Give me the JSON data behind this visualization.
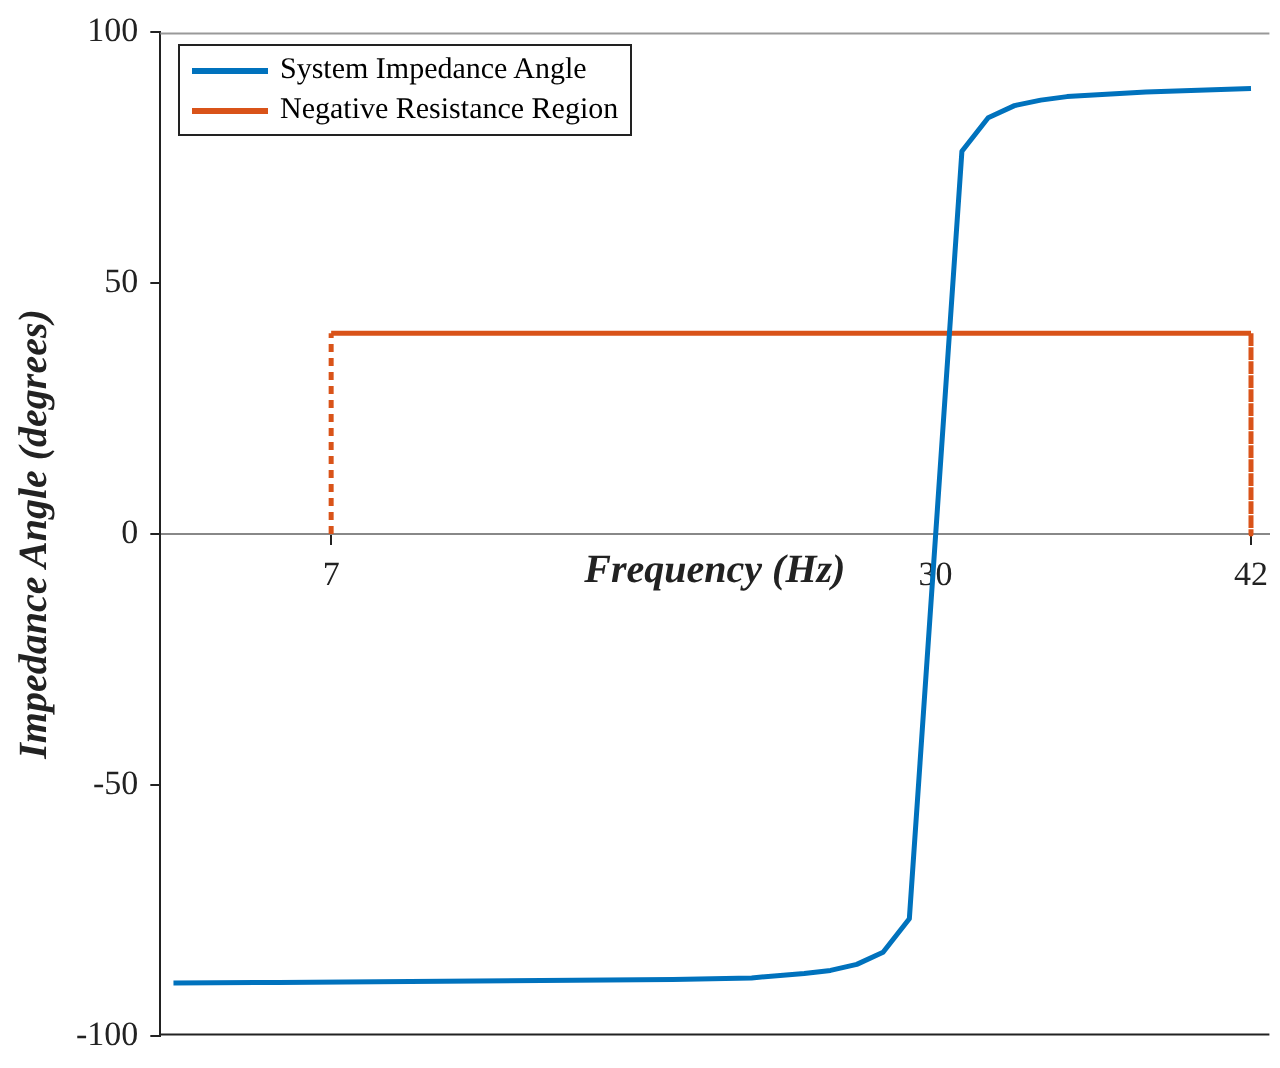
{
  "chart_data": {
    "type": "line",
    "xlabel": "Frequency (Hz)",
    "ylabel": "Impedance Angle (degrees)",
    "xlim": [
      0.5,
      42.7
    ],
    "xticks": [
      7,
      30,
      42
    ],
    "ylim": [
      -100,
      100
    ],
    "yticks": [
      -100,
      -50,
      0,
      50,
      100
    ],
    "grid": false,
    "legend": "top left",
    "marker": "none",
    "series": [
      {
        "name": "System Impedance Angle",
        "color": "#0072bd",
        "x": [
          1,
          5,
          10,
          15,
          20,
          23,
          25,
          26,
          27,
          28,
          29,
          31,
          32,
          33,
          34,
          35,
          38,
          42
        ],
        "values": [
          -89.5,
          -89.4,
          -89.2,
          -89,
          -88.8,
          -88.5,
          -87.6,
          -87,
          -85.8,
          -83.4,
          -76.7,
          76.3,
          83,
          85.4,
          86.5,
          87.2,
          88.1,
          88.8
        ]
      },
      {
        "name": "Negative Resistance Region",
        "color": "#d95319",
        "x": [
          7,
          7,
          42,
          42
        ],
        "values": [
          0,
          40,
          40,
          0
        ]
      }
    ]
  }
}
